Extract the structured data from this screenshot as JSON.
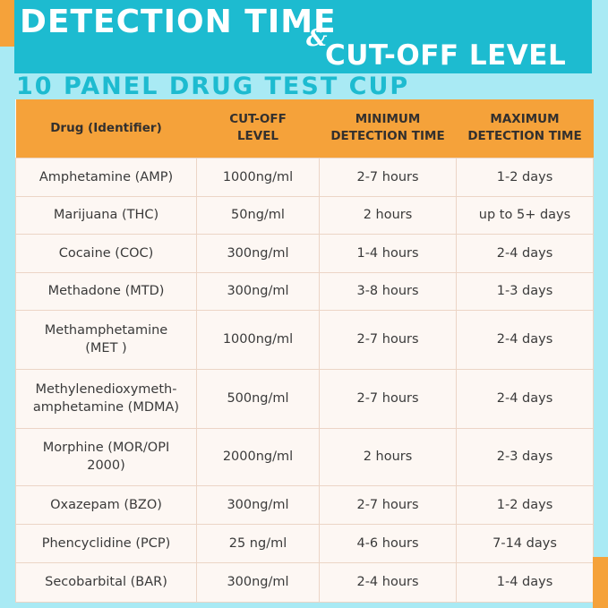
{
  "header": {
    "title_line1": "DETECTION TIME",
    "ampersand": "&",
    "title_line2": "CUT-OFF LEVEL",
    "subtitle": "10 PANEL DRUG TEST CUP"
  },
  "table": {
    "columns": [
      "Drug (Identifier)",
      "CUT-OFF\nLEVEL",
      "MINIMUM\nDETECTION TIME",
      "MAXIMUM\nDETECTION TIME"
    ],
    "rows": [
      [
        "Amphetamine (AMP)",
        "1000ng/ml",
        "2-7 hours",
        "1-2 days"
      ],
      [
        "Marijuana (THC)",
        "50ng/ml",
        "2 hours",
        "up to 5+ days"
      ],
      [
        "Cocaine (COC)",
        "300ng/ml",
        "1-4 hours",
        "2-4 days"
      ],
      [
        "Methadone (MTD)",
        "300ng/ml",
        "3-8 hours",
        "1-3 days"
      ],
      [
        "Methamphetamine\n(MET )",
        "1000ng/ml",
        "2-7 hours",
        "2-4 days"
      ],
      [
        "Methylenedioxymeth-\namphetamine (MDMA)",
        "500ng/ml",
        "2-7 hours",
        "2-4 days"
      ],
      [
        "Morphine (MOR/OPI\n2000)",
        "2000ng/ml",
        "2 hours",
        "2-3 days"
      ],
      [
        "Oxazepam (BZO)",
        "300ng/ml",
        "2-7 hours",
        "1-2 days"
      ],
      [
        "Phencyclidine (PCP)",
        "25 ng/ml",
        "4-6 hours",
        "7-14 days"
      ],
      [
        "Secobarbital (BAR)",
        "300ng/ml",
        "2-4 hours",
        "1-4 days"
      ]
    ]
  },
  "colors": {
    "banner": "#1dbbd0",
    "background": "#a9eaf4",
    "header_row": "#f5a23a",
    "table_body": "#fdf7f3",
    "accent": "#f5a23a"
  }
}
